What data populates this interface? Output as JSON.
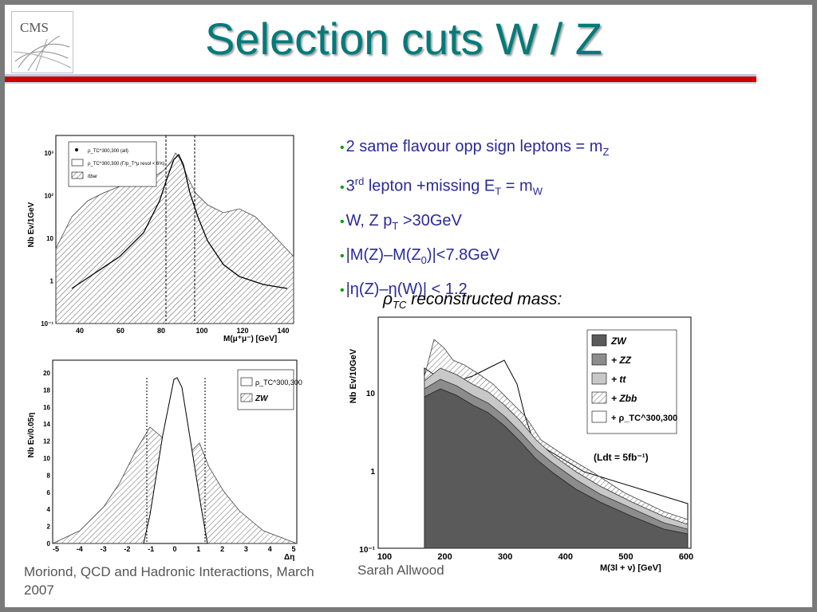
{
  "slide": {
    "title": "Selection cuts W / Z",
    "logo_text": "CMS",
    "bullets": [
      {
        "pre": "2 same flavour opp sign leptons = m",
        "sub": "Z",
        "post": ""
      },
      {
        "pre": "3",
        "sup": "rd",
        "mid": " lepton +missing E",
        "sub1": "T",
        "mid2": " = m",
        "sub2": "W"
      },
      {
        "pre": "W, Z p",
        "sub": "T",
        "post": " >30GeV"
      },
      {
        "pre": "|M(Z)–M(Z",
        "sub": "0",
        "post": ")|<7.8GeV"
      },
      {
        "pre": "|η(Z)–η(W)| < 1.2",
        "sub": "",
        "post": ""
      }
    ],
    "bullet_marker": "•",
    "caption_rho": "ρ",
    "caption_sub": "TC",
    "caption_rest": " reconstructed mass:",
    "footer_left": "Moriond, QCD and Hadronic Interactions, March 2007",
    "footer_mid": "Sarah Allwood"
  },
  "colors": {
    "title": "#007a7a",
    "rule_red": "#cc0000",
    "bullet_text": "#2a2a9a",
    "bullet_dot": "#00a000",
    "zw_fill": "#5a5a5a",
    "zz_fill": "#8c8c8c",
    "tt_fill": "#c8c8c8"
  },
  "chart_data": [
    {
      "type": "line",
      "xlabel": "M(μ⁺μ⁻) [GeV]",
      "ylabel": "Nb Ev/1GeV",
      "y_log": true,
      "x_ticks": [
        "40",
        "60",
        "80",
        "100",
        "120",
        "140"
      ],
      "y_ticks": [
        "10⁻¹",
        "1",
        "10",
        "10²",
        "10³"
      ],
      "legend": [
        {
          "label": "ρ_TC^300,300 (all)",
          "style": "points"
        },
        {
          "label": "ρ_TC^300,300 (Γ/p_T^μ resol < 6%)",
          "style": "open"
        },
        {
          "label": "ttbar",
          "style": "hatched"
        }
      ],
      "cut_lines": [
        83.4,
        99.0
      ]
    },
    {
      "type": "area",
      "xlabel": "Δη",
      "ylabel": "Nb Ev/0.05η",
      "x_ticks": [
        "-5",
        "-4",
        "-3",
        "-2",
        "-1",
        "0",
        "1",
        "2",
        "3",
        "4",
        "5"
      ],
      "y_ticks": [
        "0",
        "2",
        "4",
        "6",
        "8",
        "10",
        "12",
        "14",
        "16",
        "18",
        "20"
      ],
      "legend": [
        {
          "label": "ρ_TC^300,300",
          "style": "open"
        },
        {
          "label": "ZW",
          "style": "hatched"
        }
      ],
      "cut_lines": [
        -1.2,
        1.2
      ]
    },
    {
      "type": "area",
      "xlabel": "M(3l + ν) [GeV]",
      "ylabel": "Nb Ev/10GeV",
      "y_log": true,
      "x_ticks": [
        "100",
        "200",
        "300",
        "400",
        "500",
        "600"
      ],
      "y_ticks": [
        "10⁻¹",
        "1",
        "10"
      ],
      "legend": [
        {
          "label": "ZW",
          "style": "dark"
        },
        {
          "label": "+ ZZ",
          "style": "mid"
        },
        {
          "label": "+ tt",
          "style": "light"
        },
        {
          "label": "+ Zbb",
          "style": "hatched"
        },
        {
          "label": "+ ρ_TC^300,300",
          "style": "open"
        }
      ],
      "annotation": "(Ldt = 5fb⁻¹)"
    }
  ]
}
